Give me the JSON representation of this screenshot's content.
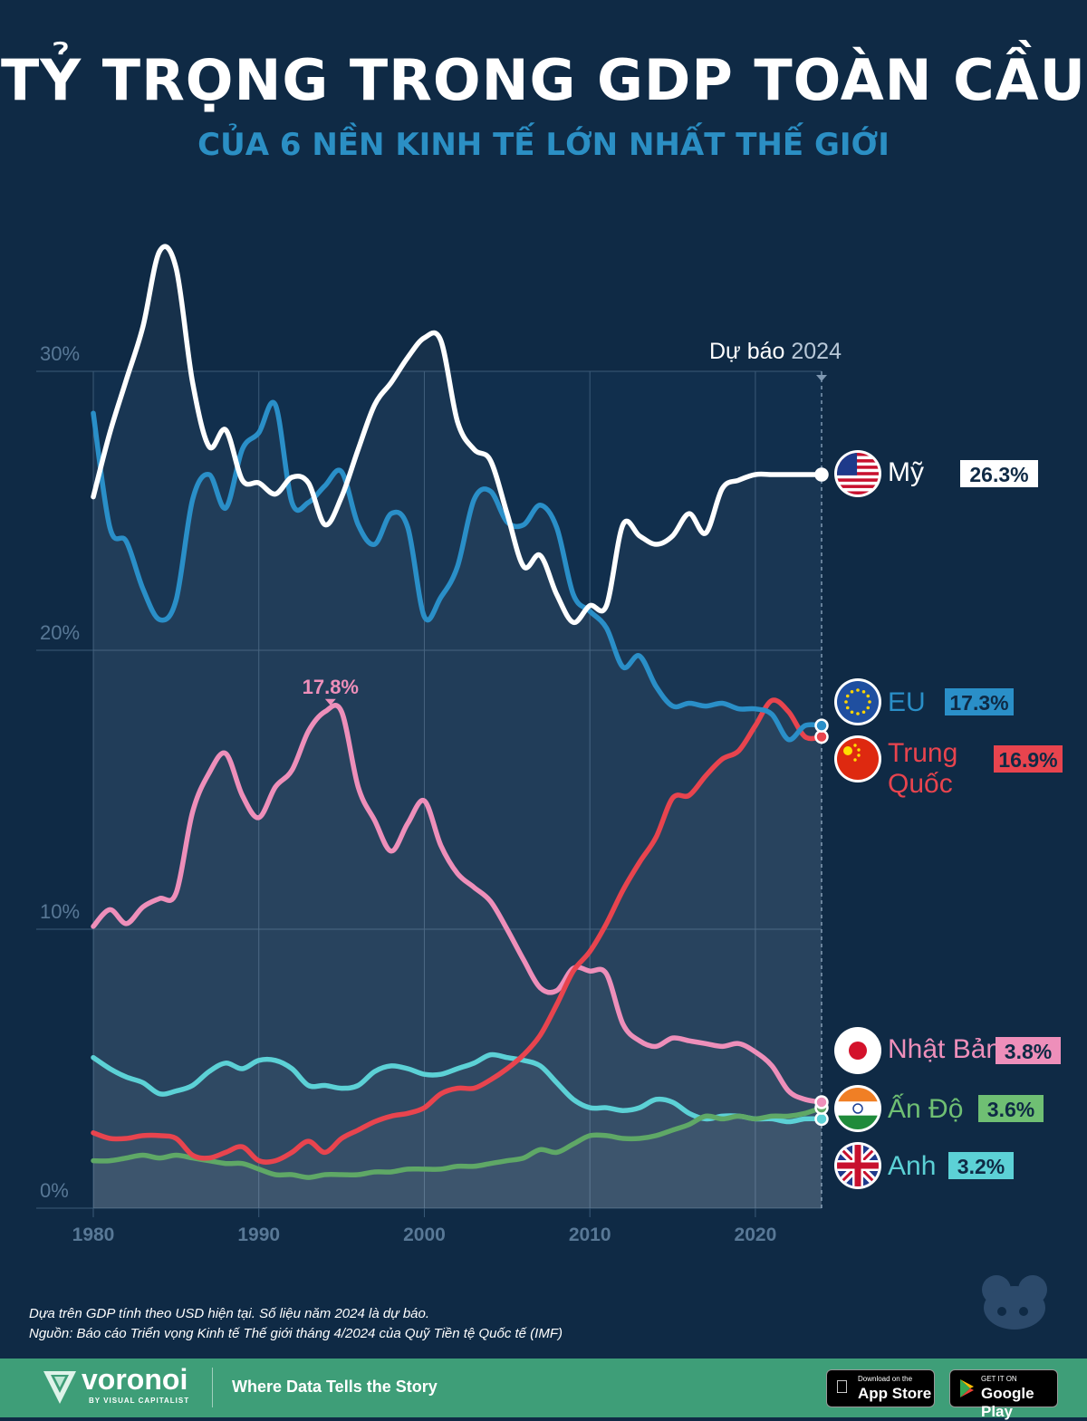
{
  "header": {
    "title": "TỶ TRỌNG TRONG GDP TOÀN CẦU",
    "subtitle": "CỦA 6 NỀN KINH TẾ LỚN NHẤT THẾ GIỚI"
  },
  "chart_data": {
    "type": "line",
    "x_ticks": [
      1980,
      1990,
      2000,
      2010,
      2020
    ],
    "y_ticks": [
      "0%",
      "10%",
      "20%",
      "30%"
    ],
    "y_tick_values": [
      0,
      10,
      20,
      30
    ],
    "xlim": [
      1980,
      2024
    ],
    "ylim": [
      0,
      30
    ],
    "grid": true,
    "forecast_label_prefix": "Dự báo",
    "forecast_label_year": "2024",
    "forecast_year": 2024,
    "peak_annotation": {
      "label": "17.8%",
      "series": "Nhật Bản",
      "x": 1994,
      "y": 17.8
    },
    "x": [
      1980,
      1981,
      1982,
      1983,
      1984,
      1985,
      1986,
      1987,
      1988,
      1989,
      1990,
      1991,
      1992,
      1993,
      1994,
      1995,
      1996,
      1997,
      1998,
      1999,
      2000,
      2001,
      2002,
      2003,
      2004,
      2005,
      2006,
      2007,
      2008,
      2009,
      2010,
      2011,
      2012,
      2013,
      2014,
      2015,
      2016,
      2017,
      2018,
      2019,
      2020,
      2021,
      2022,
      2023,
      2024
    ],
    "series": [
      {
        "name": "Mỹ",
        "end_label": "26.3%",
        "color": "#ffffff",
        "line_color": "#ffffff",
        "badge_text_color": "#0f2a45",
        "flag": "us-flag-icon",
        "values": [
          25.5,
          27.8,
          29.7,
          31.6,
          34.3,
          33.7,
          29.6,
          27.3,
          27.9,
          26.1,
          26.0,
          25.6,
          26.2,
          26.0,
          24.5,
          25.5,
          27.2,
          28.8,
          29.6,
          30.5,
          31.2,
          31.1,
          28.2,
          27.2,
          26.8,
          24.9,
          23.0,
          23.4,
          22.0,
          21.0,
          21.6,
          21.6,
          24.5,
          24.1,
          23.8,
          24.1,
          24.9,
          24.2,
          25.8,
          26.1,
          26.3,
          26.3,
          26.3,
          26.3,
          26.3
        ]
      },
      {
        "name": "EU",
        "end_label": "17.3%",
        "color": "#2a8fc8",
        "line_color": "#2a8fc8",
        "badge_text_color": "#0f2a45",
        "flag": "eu-flag-icon",
        "values": [
          28.5,
          24.4,
          23.9,
          22.2,
          21.1,
          21.8,
          25.4,
          26.3,
          25.1,
          27.2,
          27.8,
          28.8,
          25.3,
          25.3,
          25.9,
          26.4,
          24.5,
          23.8,
          24.9,
          24.4,
          21.2,
          21.9,
          23.0,
          25.4,
          25.7,
          24.6,
          24.5,
          25.2,
          24.4,
          22.0,
          21.4,
          20.8,
          19.4,
          19.8,
          18.7,
          18.0,
          18.1,
          18.0,
          18.1,
          17.9,
          17.9,
          17.7,
          16.8,
          17.3,
          17.3
        ]
      },
      {
        "name": "Trung Quốc",
        "end_label": "16.9%",
        "color": "#e8444e",
        "line_color": "#e8444e",
        "badge_text_color": "#0f2a45",
        "flag": "cn-flag-icon",
        "values": [
          2.7,
          2.5,
          2.5,
          2.6,
          2.6,
          2.5,
          1.9,
          1.8,
          2.0,
          2.2,
          1.7,
          1.7,
          2.0,
          2.4,
          2.0,
          2.5,
          2.8,
          3.1,
          3.3,
          3.4,
          3.6,
          4.1,
          4.3,
          4.3,
          4.6,
          5.0,
          5.5,
          6.2,
          7.3,
          8.5,
          9.2,
          10.2,
          11.4,
          12.4,
          13.3,
          14.7,
          14.8,
          15.5,
          16.1,
          16.4,
          17.3,
          18.2,
          17.8,
          16.9,
          16.9
        ]
      },
      {
        "name": "Nhật Bản",
        "end_label": "3.8%",
        "color": "#ee8fba",
        "line_color": "#ee8fba",
        "badge_text_color": "#0f2a45",
        "flag": "jp-flag-icon",
        "values": [
          10.1,
          10.7,
          10.2,
          10.8,
          11.1,
          11.3,
          14.2,
          15.6,
          16.3,
          14.8,
          14.0,
          15.1,
          15.7,
          17.1,
          17.8,
          17.8,
          15.1,
          13.9,
          12.8,
          13.8,
          14.6,
          13.0,
          12.0,
          11.5,
          11.0,
          10.0,
          8.9,
          7.9,
          7.8,
          8.6,
          8.5,
          8.4,
          6.6,
          6.0,
          5.8,
          6.1,
          6.0,
          5.9,
          5.8,
          5.9,
          5.6,
          5.1,
          4.2,
          3.9,
          3.8
        ]
      },
      {
        "name": "Ấn Độ",
        "end_label": "3.6%",
        "color": "#6fbf73",
        "line_color": "#5fa866",
        "badge_text_color": "#0f2a45",
        "flag": "in-flag-icon",
        "values": [
          1.7,
          1.7,
          1.8,
          1.9,
          1.8,
          1.9,
          1.8,
          1.7,
          1.6,
          1.6,
          1.4,
          1.2,
          1.2,
          1.1,
          1.2,
          1.2,
          1.2,
          1.3,
          1.3,
          1.4,
          1.4,
          1.4,
          1.5,
          1.5,
          1.6,
          1.7,
          1.8,
          2.1,
          2.0,
          2.3,
          2.6,
          2.6,
          2.5,
          2.5,
          2.6,
          2.8,
          3.0,
          3.3,
          3.2,
          3.3,
          3.2,
          3.3,
          3.3,
          3.4,
          3.6
        ]
      },
      {
        "name": "Anh",
        "end_label": "3.2%",
        "color": "#5cd1d6",
        "line_color": "#5cd1d6",
        "badge_text_color": "#0f2a45",
        "flag": "uk-flag-icon",
        "values": [
          5.4,
          5.0,
          4.7,
          4.5,
          4.1,
          4.2,
          4.4,
          4.9,
          5.2,
          5.0,
          5.3,
          5.3,
          5.0,
          4.4,
          4.4,
          4.3,
          4.4,
          4.9,
          5.1,
          5.0,
          4.8,
          4.8,
          5.0,
          5.2,
          5.5,
          5.4,
          5.3,
          5.1,
          4.5,
          3.9,
          3.6,
          3.6,
          3.5,
          3.6,
          3.9,
          3.8,
          3.4,
          3.2,
          3.3,
          3.3,
          3.2,
          3.2,
          3.1,
          3.2,
          3.2
        ]
      }
    ]
  },
  "footnote": {
    "line1": "Dựa trên GDP tính theo USD hiện tại. Số liệu năm 2024 là dự báo.",
    "line2": "Nguồn: Báo cáo Triển vọng Kinh tế Thế giới tháng 4/2024 của Quỹ Tiền tệ Quốc tế (IMF)"
  },
  "footer": {
    "brand": "voronoi",
    "brand_sub": "BY VISUAL CAPITALIST",
    "tagline": "Where Data Tells the Story",
    "appstore_small": "Download on the",
    "appstore_big": "App Store",
    "googleplay_small": "GET IT ON",
    "googleplay_big": "Google Play"
  }
}
